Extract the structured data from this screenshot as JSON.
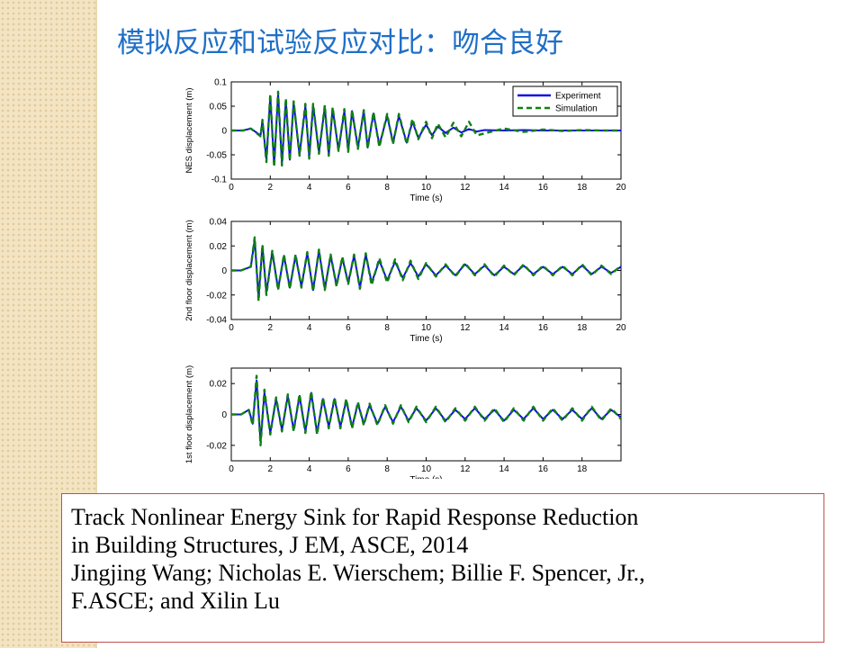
{
  "slide": {
    "title": "模拟反应和试验反应对比：吻合良好",
    "citation": [
      "Track Nonlinear Energy Sink for Rapid Response Reduction",
      "in Building Structures, J EM, ASCE, 2014",
      "Jingjing Wang; Nicholas E. Wierschem; Billie F. Spencer, Jr.,",
      "F.ASCE; and Xilin Lu"
    ]
  },
  "colors": {
    "experiment": "#1010e0",
    "simulation": "#108010",
    "title": "#1f6fc7",
    "border": "#c0504d"
  },
  "chart_data": [
    {
      "type": "line",
      "ylabel": "NES displacement (m)",
      "xlabel": "Time (s)",
      "xlim": [
        0,
        20
      ],
      "ylim": [
        -0.1,
        0.1
      ],
      "xticks": [
        "0",
        "2",
        "4",
        "6",
        "8",
        "10",
        "12",
        "14",
        "16",
        "18",
        "20"
      ],
      "yticks": [
        "0.1",
        "0.05",
        "0",
        "-0.05",
        "-0.1"
      ],
      "ytick_values": [
        0.1,
        0.05,
        0,
        -0.05,
        -0.1
      ],
      "legend": [
        "Experiment",
        "Simulation"
      ],
      "legend_position": "top-right",
      "series": [
        {
          "name": "Experiment",
          "style": "solid",
          "x": [
            0,
            0.6,
            1.0,
            1.5,
            1.6,
            1.8,
            2.0,
            2.2,
            2.4,
            2.6,
            2.8,
            3.0,
            3.2,
            3.5,
            3.8,
            4.0,
            4.2,
            4.5,
            4.8,
            5.0,
            5.2,
            5.5,
            5.8,
            6.0,
            6.2,
            6.5,
            6.8,
            7.0,
            7.3,
            7.6,
            8.0,
            8.3,
            8.6,
            9.0,
            9.3,
            9.6,
            10.0,
            10.3,
            10.6,
            11.0,
            11.4,
            11.8,
            12.2,
            12.6,
            13.0,
            14.0,
            15.0,
            16.0,
            17.0,
            18.0,
            19.0,
            20.0
          ],
          "y": [
            0,
            0,
            0.004,
            -0.01,
            0.02,
            -0.06,
            0.07,
            -0.07,
            0.075,
            -0.068,
            0.062,
            -0.06,
            0.058,
            -0.05,
            0.05,
            -0.055,
            0.052,
            -0.045,
            0.048,
            -0.05,
            0.045,
            -0.04,
            0.04,
            -0.042,
            0.04,
            -0.035,
            0.04,
            -0.035,
            0.035,
            -0.03,
            0.03,
            -0.025,
            0.03,
            -0.025,
            0.018,
            -0.015,
            0.012,
            -0.01,
            0.008,
            -0.005,
            0.006,
            -0.004,
            0.003,
            -0.002,
            0.001,
            0.0,
            0.001,
            0.0,
            0.0,
            0.0,
            0.0,
            0.0
          ]
        },
        {
          "name": "Simulation",
          "style": "dashed",
          "x": [
            0,
            0.6,
            1.0,
            1.5,
            1.6,
            1.8,
            2.0,
            2.2,
            2.4,
            2.6,
            2.8,
            3.0,
            3.2,
            3.5,
            3.8,
            4.0,
            4.2,
            4.5,
            4.8,
            5.0,
            5.2,
            5.5,
            5.8,
            6.0,
            6.2,
            6.5,
            6.8,
            7.0,
            7.3,
            7.6,
            8.0,
            8.3,
            8.6,
            9.0,
            9.3,
            9.6,
            10.0,
            10.3,
            10.6,
            11.0,
            11.4,
            11.8,
            12.2,
            12.6,
            13.0,
            14.0,
            15.0,
            16.0,
            17.0,
            18.0,
            19.0,
            20.0
          ],
          "y": [
            0,
            0,
            0.004,
            -0.012,
            0.022,
            -0.065,
            0.075,
            -0.075,
            0.08,
            -0.072,
            0.066,
            -0.062,
            0.06,
            -0.052,
            0.055,
            -0.058,
            0.055,
            -0.048,
            0.052,
            -0.052,
            0.048,
            -0.042,
            0.044,
            -0.044,
            0.042,
            -0.038,
            0.042,
            -0.037,
            0.038,
            -0.034,
            0.034,
            -0.028,
            0.034,
            -0.028,
            0.024,
            -0.018,
            0.018,
            -0.016,
            0.014,
            -0.014,
            0.016,
            -0.012,
            0.018,
            -0.01,
            -0.006,
            0.004,
            -0.003,
            0.002,
            -0.001,
            0.001,
            0.0,
            0.0
          ]
        }
      ]
    },
    {
      "type": "line",
      "ylabel": "2nd floor displacement (m)",
      "xlabel": "Time (s)",
      "xlim": [
        0,
        20
      ],
      "ylim": [
        -0.04,
        0.04
      ],
      "xticks": [
        "0",
        "2",
        "4",
        "6",
        "8",
        "10",
        "12",
        "14",
        "16",
        "18",
        "20"
      ],
      "yticks": [
        "0.04",
        "0.02",
        "0",
        "-0.02",
        "-0.04"
      ],
      "ytick_values": [
        0.04,
        0.02,
        0,
        -0.02,
        -0.04
      ],
      "series": [
        {
          "name": "Experiment",
          "style": "solid",
          "x": [
            0,
            0.5,
            1.0,
            1.2,
            1.4,
            1.6,
            1.8,
            2.1,
            2.4,
            2.7,
            3.0,
            3.3,
            3.6,
            3.9,
            4.2,
            4.5,
            4.8,
            5.1,
            5.4,
            5.7,
            6.0,
            6.3,
            6.6,
            6.9,
            7.2,
            7.6,
            8.0,
            8.4,
            8.8,
            9.2,
            9.6,
            10.0,
            10.5,
            11.0,
            11.5,
            12.0,
            12.5,
            13.0,
            13.5,
            14.0,
            14.5,
            15.0,
            15.5,
            16.0,
            16.5,
            17.0,
            17.5,
            18.0,
            18.5,
            19.0,
            19.5,
            20.0
          ],
          "y": [
            0,
            0,
            0.003,
            0.025,
            -0.022,
            0.02,
            -0.018,
            0.015,
            -0.015,
            0.012,
            -0.014,
            0.012,
            -0.013,
            0.014,
            -0.016,
            0.016,
            -0.015,
            0.012,
            -0.012,
            0.01,
            -0.01,
            0.012,
            -0.014,
            0.013,
            -0.01,
            0.008,
            -0.008,
            0.007,
            -0.006,
            0.006,
            -0.005,
            0.005,
            -0.004,
            0.004,
            -0.004,
            0.005,
            -0.003,
            0.004,
            -0.004,
            0.003,
            -0.003,
            0.004,
            -0.003,
            0.003,
            -0.003,
            0.003,
            -0.003,
            0.004,
            -0.003,
            0.003,
            -0.002,
            0.003
          ]
        },
        {
          "name": "Simulation",
          "style": "dashed",
          "x": [
            0,
            0.5,
            1.0,
            1.2,
            1.4,
            1.6,
            1.8,
            2.1,
            2.4,
            2.7,
            3.0,
            3.3,
            3.6,
            3.9,
            4.2,
            4.5,
            4.8,
            5.1,
            5.4,
            5.7,
            6.0,
            6.3,
            6.6,
            6.9,
            7.2,
            7.6,
            8.0,
            8.4,
            8.8,
            9.2,
            9.6,
            10.0,
            10.5,
            11.0,
            11.5,
            12.0,
            12.5,
            13.0,
            13.5,
            14.0,
            14.5,
            15.0,
            15.5,
            16.0,
            16.5,
            17.0,
            17.5,
            18.0,
            18.5,
            19.0,
            19.5,
            20.0
          ],
          "y": [
            0,
            0,
            0.003,
            0.027,
            -0.025,
            0.021,
            -0.02,
            0.016,
            -0.016,
            0.013,
            -0.015,
            0.013,
            -0.014,
            0.015,
            -0.017,
            0.017,
            -0.016,
            0.013,
            -0.013,
            0.011,
            -0.011,
            0.013,
            -0.015,
            0.014,
            -0.012,
            0.01,
            -0.01,
            0.009,
            -0.008,
            0.008,
            -0.007,
            0.006,
            -0.005,
            0.005,
            -0.005,
            0.006,
            -0.004,
            0.005,
            -0.005,
            0.004,
            -0.004,
            0.005,
            -0.004,
            0.004,
            -0.004,
            0.004,
            -0.004,
            0.005,
            -0.004,
            0.004,
            -0.003,
            0.004
          ]
        }
      ]
    },
    {
      "type": "line",
      "ylabel": "1st floor displacement (m)",
      "xlabel": "Time (s)",
      "xlim": [
        0,
        20
      ],
      "ylim": [
        -0.03,
        0.03
      ],
      "xticks": [
        "0",
        "2",
        "4",
        "6",
        "8",
        "10",
        "12",
        "14",
        "16",
        "18"
      ],
      "xtick_values": [
        0,
        2,
        4,
        6,
        8,
        10,
        12,
        14,
        16,
        18
      ],
      "yticks": [
        "0.02",
        "0",
        "-0.02"
      ],
      "ytick_values": [
        0.02,
        0,
        -0.02
      ],
      "series": [
        {
          "name": "Experiment",
          "style": "solid",
          "x": [
            0,
            0.5,
            0.9,
            1.1,
            1.3,
            1.5,
            1.7,
            2.0,
            2.3,
            2.6,
            2.9,
            3.2,
            3.5,
            3.8,
            4.1,
            4.4,
            4.7,
            5.0,
            5.3,
            5.6,
            5.9,
            6.2,
            6.5,
            6.8,
            7.1,
            7.5,
            7.9,
            8.3,
            8.7,
            9.1,
            9.5,
            10.0,
            10.5,
            11.0,
            11.5,
            12.0,
            12.5,
            13.0,
            13.5,
            14.0,
            14.5,
            15.0,
            15.5,
            16.0,
            16.5,
            17.0,
            17.5,
            18.0,
            18.5,
            19.0,
            19.5,
            20.0
          ],
          "y": [
            0,
            0,
            0.003,
            -0.006,
            0.022,
            -0.018,
            0.014,
            -0.012,
            0.01,
            -0.01,
            0.012,
            -0.01,
            0.012,
            -0.011,
            0.014,
            -0.012,
            0.01,
            -0.008,
            0.01,
            -0.008,
            0.009,
            -0.008,
            0.007,
            -0.006,
            0.006,
            -0.006,
            0.005,
            -0.005,
            0.005,
            -0.004,
            0.004,
            -0.004,
            0.004,
            -0.004,
            0.003,
            -0.003,
            0.004,
            -0.003,
            0.003,
            -0.004,
            0.003,
            -0.003,
            0.004,
            -0.003,
            0.003,
            -0.003,
            0.003,
            -0.003,
            0.004,
            -0.003,
            0.003,
            -0.002
          ]
        },
        {
          "name": "Simulation",
          "style": "dashed",
          "x": [
            0,
            0.5,
            0.9,
            1.1,
            1.3,
            1.5,
            1.7,
            2.0,
            2.3,
            2.6,
            2.9,
            3.2,
            3.5,
            3.8,
            4.1,
            4.4,
            4.7,
            5.0,
            5.3,
            5.6,
            5.9,
            6.2,
            6.5,
            6.8,
            7.1,
            7.5,
            7.9,
            8.3,
            8.7,
            9.1,
            9.5,
            10.0,
            10.5,
            11.0,
            11.5,
            12.0,
            12.5,
            13.0,
            13.5,
            14.0,
            14.5,
            15.0,
            15.5,
            16.0,
            16.5,
            17.0,
            17.5,
            18.0,
            18.5,
            19.0,
            19.5,
            20.0
          ],
          "y": [
            0,
            0,
            0.003,
            -0.007,
            0.025,
            -0.02,
            0.016,
            -0.013,
            0.011,
            -0.011,
            0.013,
            -0.011,
            0.013,
            -0.012,
            0.015,
            -0.013,
            0.011,
            -0.009,
            0.011,
            -0.009,
            0.01,
            -0.009,
            0.008,
            -0.007,
            0.007,
            -0.007,
            0.006,
            -0.006,
            0.006,
            -0.005,
            0.005,
            -0.005,
            0.005,
            -0.005,
            0.004,
            -0.004,
            0.005,
            -0.004,
            0.004,
            -0.005,
            0.004,
            -0.004,
            0.005,
            -0.004,
            0.004,
            -0.004,
            0.004,
            -0.004,
            0.005,
            -0.004,
            0.004,
            -0.003
          ]
        }
      ]
    }
  ]
}
